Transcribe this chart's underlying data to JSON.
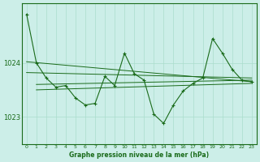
{
  "title": "Graphe pression niveau de la mer (hPa)",
  "background_color": "#cceee8",
  "grid_color": "#aaddcc",
  "line_color": "#1a6b1a",
  "xlim": [
    -0.5,
    23.5
  ],
  "ylim": [
    1022.5,
    1025.1
  ],
  "yticks": [
    1023,
    1024
  ],
  "xticks": [
    0,
    1,
    2,
    3,
    4,
    5,
    6,
    7,
    8,
    9,
    10,
    11,
    12,
    13,
    14,
    15,
    16,
    17,
    18,
    19,
    20,
    21,
    22,
    23
  ],
  "main_data": [
    [
      0,
      1024.9
    ],
    [
      1,
      1024.0
    ],
    [
      2,
      1023.72
    ],
    [
      3,
      1023.55
    ],
    [
      4,
      1023.58
    ],
    [
      5,
      1023.35
    ],
    [
      6,
      1023.22
    ],
    [
      7,
      1023.25
    ],
    [
      8,
      1023.75
    ],
    [
      9,
      1023.58
    ],
    [
      10,
      1024.18
    ],
    [
      11,
      1023.8
    ],
    [
      12,
      1023.68
    ],
    [
      13,
      1023.05
    ],
    [
      14,
      1022.88
    ],
    [
      15,
      1023.22
    ],
    [
      16,
      1023.48
    ],
    [
      17,
      1023.62
    ],
    [
      18,
      1023.72
    ],
    [
      19,
      1024.45
    ],
    [
      20,
      1024.18
    ],
    [
      21,
      1023.88
    ],
    [
      22,
      1023.68
    ],
    [
      23,
      1023.65
    ]
  ],
  "trend1_data": [
    [
      0,
      1024.02
    ],
    [
      23,
      1023.65
    ]
  ],
  "trend2_data": [
    [
      0,
      1023.82
    ],
    [
      23,
      1023.72
    ]
  ],
  "trend3_data": [
    [
      1,
      1023.6
    ],
    [
      23,
      1023.68
    ]
  ],
  "trend4_data": [
    [
      1,
      1023.5
    ],
    [
      23,
      1023.62
    ]
  ]
}
